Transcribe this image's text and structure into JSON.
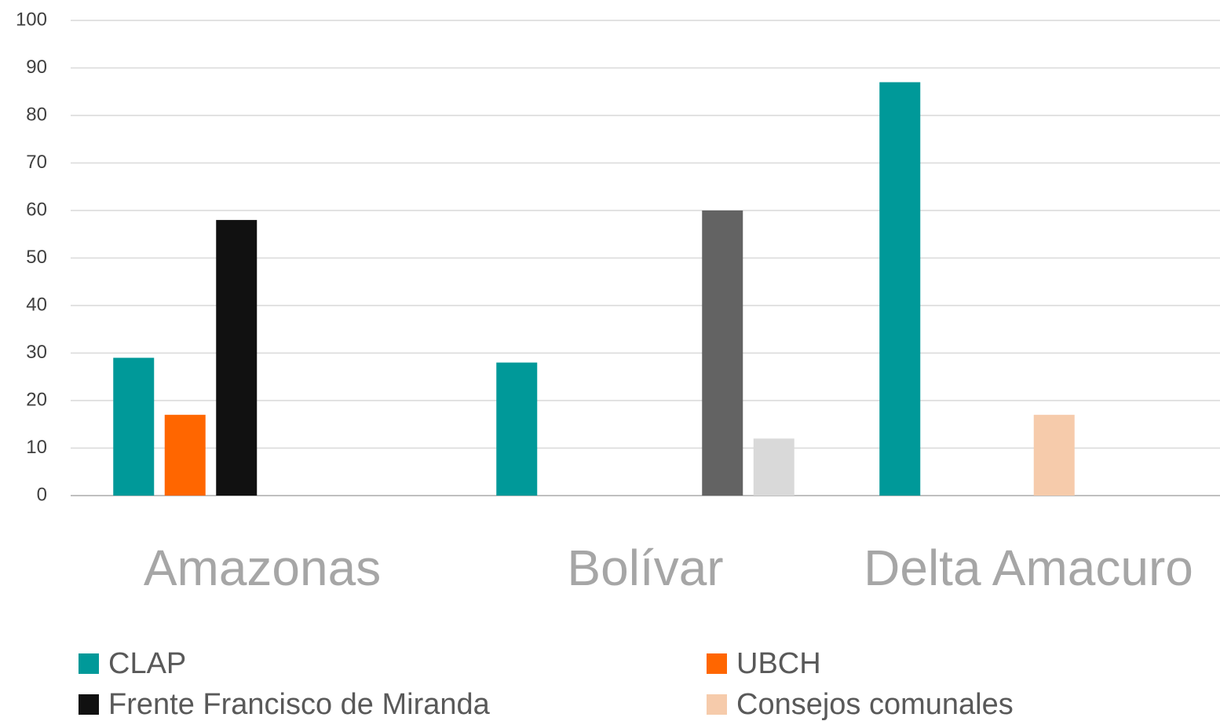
{
  "chart_data": {
    "type": "bar",
    "categories": [
      "Amazonas",
      "Bolívar",
      "Delta Amacuro"
    ],
    "series": [
      {
        "name": "CLAP",
        "color": "#009999",
        "values": [
          29,
          28,
          87
        ]
      },
      {
        "name": "UBCH",
        "color": "#ff6600",
        "values": [
          17,
          null,
          null
        ]
      },
      {
        "name": "Frente Francisco de Miranda",
        "color": "#111111",
        "values": [
          58,
          null,
          null
        ]
      },
      {
        "name": "Consejos comunales",
        "color": "#f6cbab",
        "values": [
          null,
          null,
          17
        ]
      },
      {
        "color": "#636363",
        "values": [
          null,
          60,
          null
        ]
      },
      {
        "color": "#d9d9d9",
        "values": [
          null,
          12,
          null
        ]
      }
    ],
    "ylim": [
      0,
      100
    ],
    "yticks": [
      0,
      10,
      20,
      30,
      40,
      50,
      60,
      70,
      80,
      90,
      100
    ],
    "grid": true
  }
}
